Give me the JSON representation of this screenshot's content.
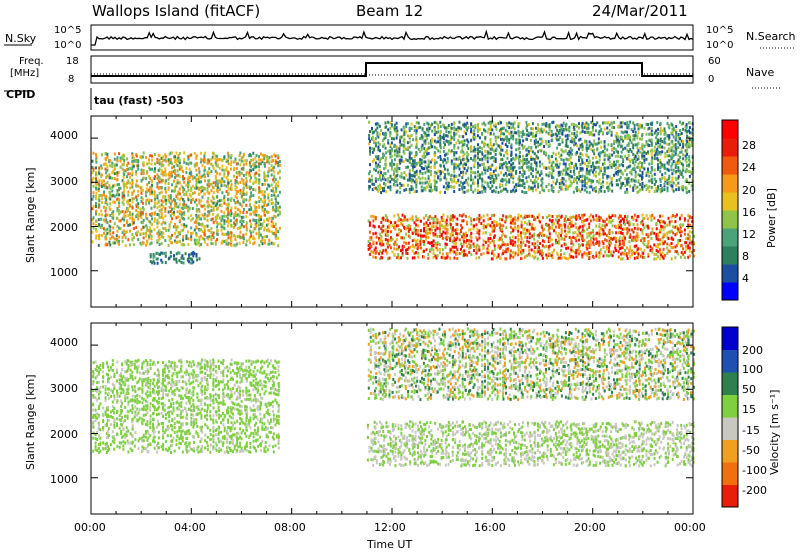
{
  "header": {
    "station": "Wallops Island (fitACF)",
    "beam": "Beam 12",
    "date": "24/Mar/2011"
  },
  "strip": {
    "nsky_label": "N.Sky",
    "nsky_ticks": [
      "10^5",
      "10^0"
    ],
    "nsearch_label": "N.Search",
    "nsearch_ticks": [
      "10^5",
      "10^0"
    ],
    "freq_label_line1": "Freq.",
    "freq_label_line2": "[MHz]",
    "freq_ticks": [
      "18",
      "8"
    ],
    "nave_label": "Nave",
    "nave_ticks": [
      "60",
      "0"
    ],
    "cpid_label": "CPID",
    "cpid_value": "tau (fast) -503"
  },
  "x_axis": {
    "label": "Time UT",
    "ticks": [
      "00:00",
      "04:00",
      "08:00",
      "12:00",
      "16:00",
      "20:00",
      "00:00"
    ]
  },
  "power_panel": {
    "ylabel": "Slant Range [km]",
    "yticks": [
      "4000",
      "3000",
      "2000",
      "1000"
    ],
    "colorbar_label": "Power [dB]",
    "colorbar_ticks": [
      "28",
      "24",
      "20",
      "16",
      "12",
      "8",
      "4"
    ],
    "colors": [
      "#0000ff",
      "#1c4fa0",
      "#2e7f5e",
      "#4ca37a",
      "#8fc34a",
      "#e8c020",
      "#f59a1a",
      "#f05a10",
      "#e81e0a",
      "#ff0000"
    ]
  },
  "velocity_panel": {
    "ylabel": "Slant Range [km]",
    "yticks": [
      "4000",
      "3000",
      "2000",
      "1000"
    ],
    "colorbar_label": "Velocity [m s⁻¹]",
    "colorbar_ticks": [
      "200",
      "100",
      "50",
      "15",
      "-15",
      "-50",
      "-100",
      "-200"
    ],
    "colors": [
      "#0000cc",
      "#1f4fb0",
      "#2f7f4f",
      "#7fd040",
      "#c8c8c0",
      "#f0a020",
      "#f07010",
      "#e81e0a"
    ]
  },
  "chart_data": {
    "type": "heatmap",
    "title": "Wallops Island (fitACF)",
    "xlabel": "Time UT",
    "x_range_hours": [
      0,
      24
    ],
    "ylim": [
      180,
      4500
    ],
    "panels": [
      {
        "name": "Power",
        "units": "dB",
        "colorbar_range": [
          0,
          30
        ],
        "echo_bands": [
          {
            "t_start": 0.0,
            "t_end": 7.5,
            "range_km": [
              1600,
              3700
            ],
            "power_db": [
              8,
              22
            ]
          },
          {
            "t_start": 11.0,
            "t_end": 24.0,
            "range_km": [
              1300,
              2300
            ],
            "power_db": [
              12,
              30
            ]
          },
          {
            "t_start": 11.0,
            "t_end": 24.0,
            "range_km": [
              2800,
              4400
            ],
            "power_db": [
              4,
              16
            ]
          },
          {
            "t_start": 2.3,
            "t_end": 4.3,
            "range_km": [
              1200,
              1450
            ],
            "power_db": [
              4,
              10
            ]
          }
        ],
        "frequency_mhz": [
          {
            "t_start": 0,
            "t_end": 11,
            "value": 10
          },
          {
            "t_start": 11,
            "t_end": 22,
            "value": 15
          },
          {
            "t_start": 22,
            "t_end": 24,
            "value": 10
          }
        ]
      },
      {
        "name": "Velocity",
        "units": "m s^-1",
        "colorbar_range": [
          -250,
          250
        ],
        "echo_bands": [
          {
            "t_start": 0.0,
            "t_end": 7.5,
            "range_km": [
              1600,
              3700
            ],
            "velocity_ms": [
              -15,
              50
            ]
          },
          {
            "t_start": 11.0,
            "t_end": 24.0,
            "range_km": [
              1300,
              2300
            ],
            "velocity_ms": [
              -15,
              15
            ]
          },
          {
            "t_start": 11.0,
            "t_end": 24.0,
            "range_km": [
              2800,
              4400
            ],
            "velocity_ms": [
              -100,
              100
            ]
          }
        ]
      }
    ]
  }
}
